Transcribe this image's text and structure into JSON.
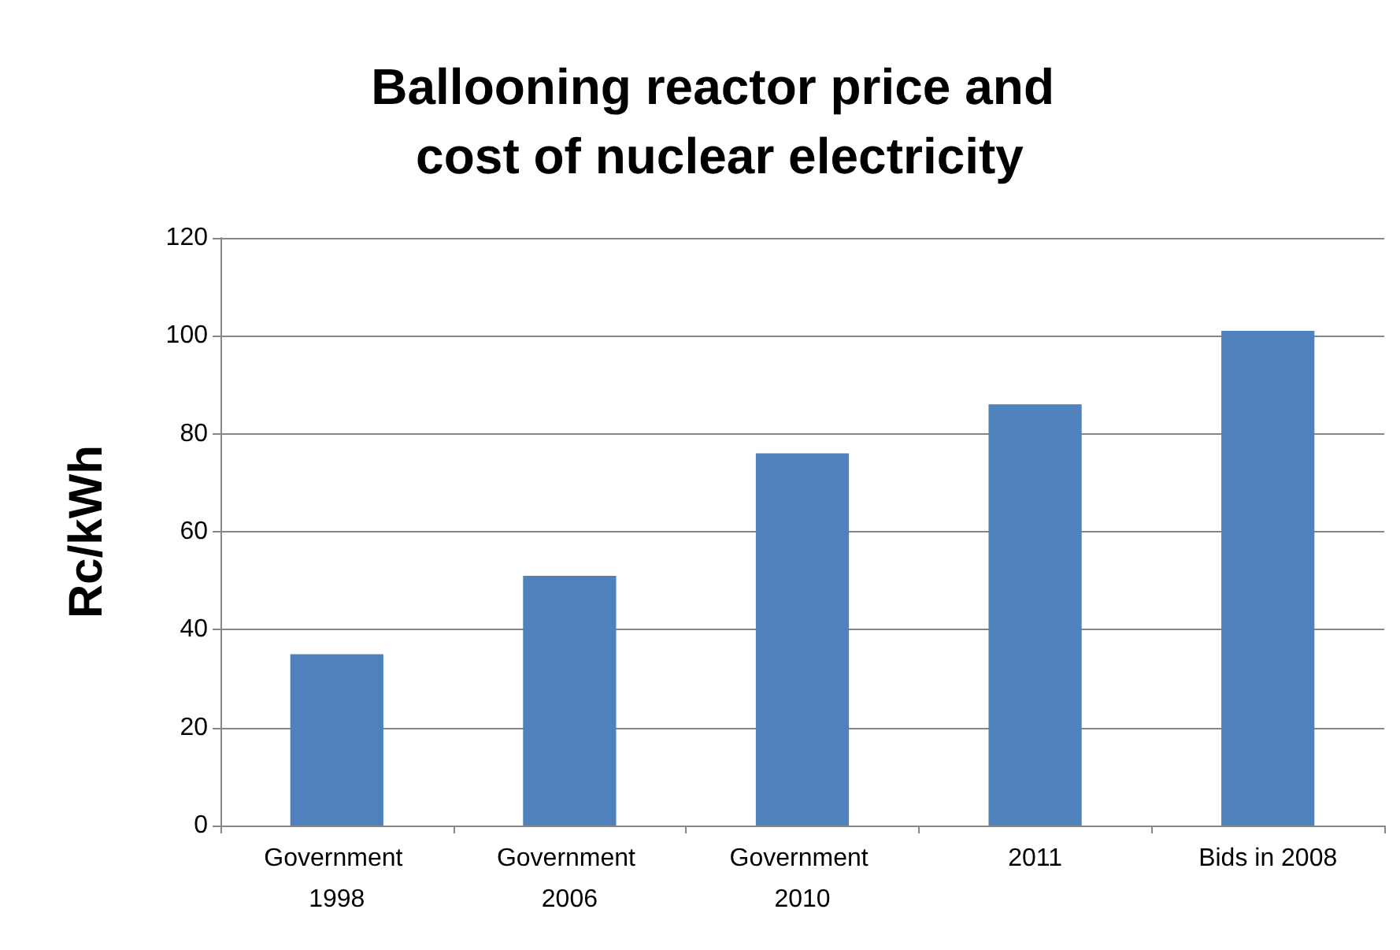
{
  "chart_data": {
    "type": "bar",
    "title": "Ballooning reactor price and cost of nuclear electricity",
    "ylabel": "Rc/kWh",
    "categories": [
      "Government 1998",
      "Government 2006",
      "Government 2010",
      "2011",
      "Bids in 2008"
    ],
    "values": [
      35,
      51,
      76,
      86,
      101
    ],
    "color": "#4f81bd",
    "ylim": [
      0,
      120
    ],
    "yticks": [
      0,
      20,
      40,
      60,
      80,
      100,
      120
    ],
    "grid": "y"
  }
}
